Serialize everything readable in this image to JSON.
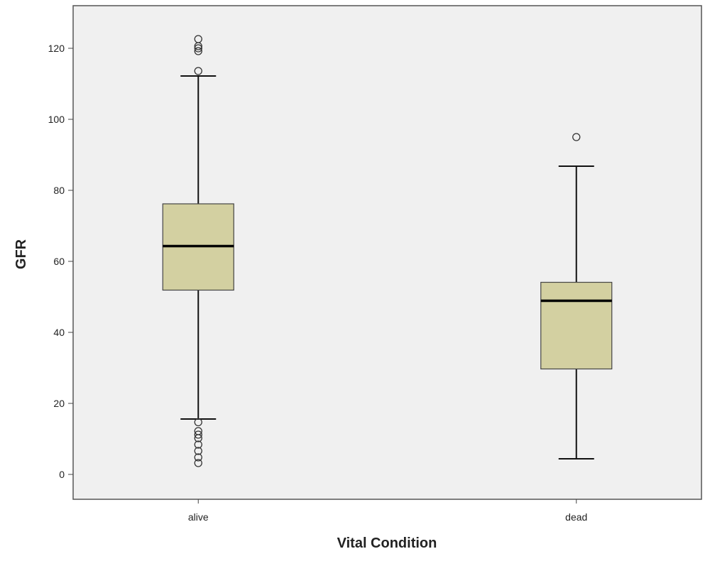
{
  "chart_data": {
    "type": "box",
    "x_label": "Vital Condition",
    "y_label": "GFR",
    "categories": [
      "alive",
      "dead"
    ],
    "color": "#d3d0a1",
    "background": "#f0f0f0",
    "boxes": [
      {
        "whisker_low": 15.6,
        "q1": 51.9,
        "median": 64.3,
        "q3": 76.2,
        "whisker_high": 112.2,
        "outliers": [
          122.6,
          120.6,
          120,
          119.2,
          113.6,
          14.7,
          12.2,
          11.2,
          10.2,
          8.4,
          6.6,
          4.8,
          3.2
        ]
      },
      {
        "whisker_low": 4.4,
        "q1": 29.7,
        "median": 48.9,
        "q3": 54.1,
        "whisker_high": 86.8,
        "outliers": [
          95
        ]
      }
    ],
    "ylim": [
      -7,
      132
    ],
    "yticks": [
      0,
      20,
      40,
      60,
      80,
      100,
      120
    ]
  }
}
